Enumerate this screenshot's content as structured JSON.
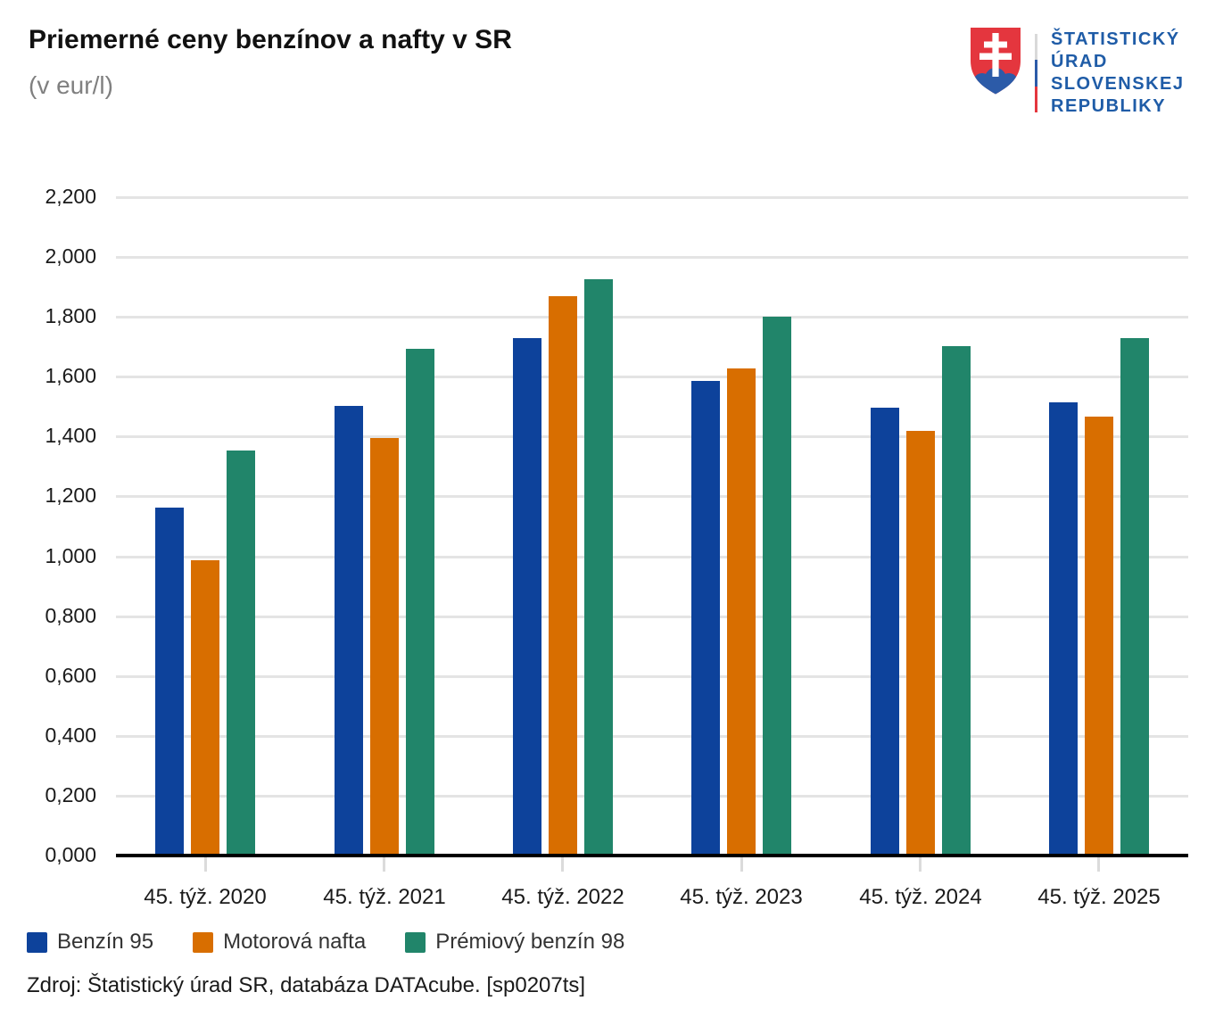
{
  "header": {
    "title": "Priemerné ceny benzínov a nafty v SR",
    "subtitle": "(v eur/l)"
  },
  "logo": {
    "name": "statistical-office-of-slovak-republic",
    "lines": [
      "ŠTATISTICKÝ",
      "ÚRAD",
      "SLOVENSKEJ",
      "REPUBLIKY"
    ],
    "text_color": "#1f5ca7",
    "shield_red": "#e4363e",
    "shield_blue": "#2c5ba8"
  },
  "chart_data": {
    "type": "bar",
    "title": "Priemerné ceny benzínov a nafty v SR",
    "subtitle": "(v eur/l)",
    "categories": [
      "45. týž. 2020",
      "45. týž. 2021",
      "45. týž. 2022",
      "45. týž. 2023",
      "45. týž. 2024",
      "45. týž. 2025"
    ],
    "series": [
      {
        "name": "Benzín 95",
        "color": "#0d429b",
        "values": [
          1.163,
          1.503,
          1.728,
          1.585,
          1.495,
          1.513
        ]
      },
      {
        "name": "Motorová nafta",
        "color": "#d86e00",
        "values": [
          0.988,
          1.396,
          1.87,
          1.626,
          1.418,
          1.466
        ]
      },
      {
        "name": "Prémiový benzín 98",
        "color": "#21856a",
        "values": [
          1.352,
          1.692,
          1.924,
          1.8,
          1.703,
          1.728
        ]
      }
    ],
    "xlabel": "",
    "ylabel": "",
    "ylim": [
      0,
      2.2
    ],
    "ytick_step": 0.2,
    "ytick_labels": [
      "0,000",
      "0,200",
      "0,400",
      "0,600",
      "0,800",
      "1,000",
      "1,200",
      "1,400",
      "1,600",
      "1,800",
      "2,000",
      "2,200"
    ],
    "decimal_separator": ",",
    "grid": true,
    "legend_position": "bottom-left"
  },
  "source": {
    "text": "Zdroj: Štatistický úrad SR, databáza DATAcube. [sp0207ts]"
  }
}
